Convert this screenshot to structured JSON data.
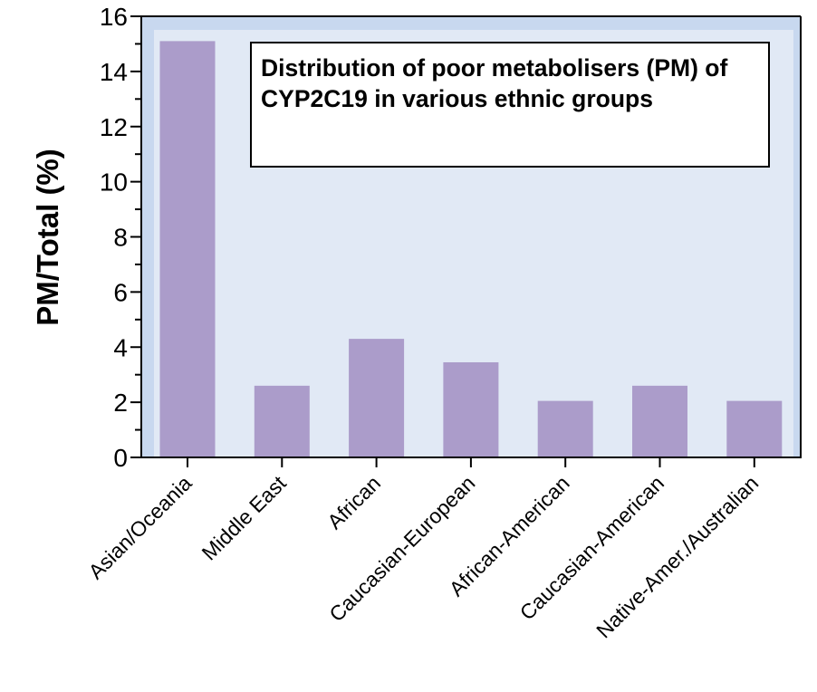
{
  "chart_data": {
    "type": "bar",
    "title": "Distribution of poor metabolisers (PM) of CYP2C19 in various ethnic groups",
    "xlabel": "",
    "ylabel": "PM/Total (%)",
    "ylim": [
      0,
      16
    ],
    "yticks": [
      0,
      2,
      4,
      6,
      8,
      10,
      12,
      14,
      16
    ],
    "yticks_minor": [
      1,
      3,
      5,
      7,
      9,
      11,
      13,
      15
    ],
    "grid": false,
    "legend": "none",
    "categories": [
      "Asian/Oceania",
      "Middle East",
      "African",
      "Caucasian-European",
      "African-American",
      "Caucasian-American",
      "Native-Amer./Australian"
    ],
    "values": [
      15.1,
      2.6,
      4.3,
      3.45,
      2.05,
      2.6,
      2.05
    ],
    "colors": {
      "bar": "#ab9cca",
      "plot_outer": "#c8d8ef",
      "plot_inner": "#e1e9f5",
      "axis": "#000000"
    }
  }
}
